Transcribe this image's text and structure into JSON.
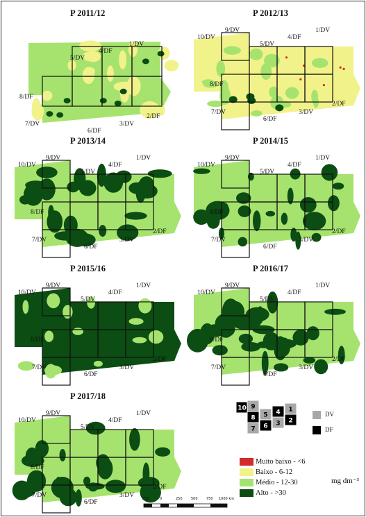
{
  "colors": {
    "muito_baixo": "#d22b2b",
    "baixo": "#f2f28a",
    "medio": "#a6e36e",
    "alto": "#0b4d12",
    "border": "#111111"
  },
  "panels": [
    {
      "title": "P 2011/12",
      "labels": [
        "1/DV",
        "4/DF",
        "5/DV",
        "8/DF",
        "7/DV",
        "6/DF",
        "3/DV",
        "2/DF"
      ],
      "base": "medio",
      "highlight": "baixo",
      "dense": 0.25
    },
    {
      "title": "P 2012/13",
      "labels": [
        "10/DV",
        "9/DV",
        "1/DV",
        "4/DF",
        "5/DV",
        "8/DF",
        "7/DV",
        "6/DF",
        "3/DV",
        "2/DF"
      ],
      "base": "baixo",
      "highlight": "medio",
      "dense": 0.2
    },
    {
      "title": "P 2013/14",
      "labels": [
        "10/DV",
        "9/DV",
        "1/DV",
        "4/DF",
        "5/DV",
        "8/DF",
        "7/DV",
        "6/DF",
        "3/DV",
        "2/DF"
      ],
      "base": "medio",
      "highlight": "alto",
      "dense": 0.45
    },
    {
      "title": "P 2014/15",
      "labels": [
        "10/DV",
        "9/DV",
        "1/DV",
        "4/DF",
        "5/DV",
        "8/DF",
        "7/DV",
        "6/DF",
        "3/DV",
        "2/DF"
      ],
      "base": "medio",
      "highlight": "alto",
      "dense": 0.35
    },
    {
      "title": "P 2015/16",
      "labels": [
        "10/DV",
        "9/DV",
        "1/DV",
        "4/DF",
        "5/DV",
        "8/DF",
        "7/DV",
        "6/DF",
        "3/DV",
        "2/DF"
      ],
      "base": "alto",
      "highlight": "medio",
      "dense": 0.05
    },
    {
      "title": "P 2016/17",
      "labels": [
        "10/DV",
        "9/DV",
        "1/DV",
        "4/DF",
        "5/DV",
        "8/DF",
        "7/DV",
        "6/DF",
        "3/DV",
        "2/DF"
      ],
      "base": "medio",
      "highlight": "alto",
      "dense": 0.6
    },
    {
      "title": "P 2017/18",
      "labels": [
        "10/DV",
        "9/DV",
        "1/DV",
        "4/DF",
        "5/DV",
        "8/DF",
        "7/DV",
        "6/DF",
        "3/DV",
        "2/DF"
      ],
      "base": "medio",
      "highlight": "alto",
      "dense": 0.4
    }
  ],
  "key_map": {
    "numbers": [
      "10",
      "9",
      "8",
      "5",
      "4",
      "1",
      "7",
      "6",
      "3",
      "2"
    ],
    "dv_label": "DV",
    "df_label": "DF"
  },
  "legend": {
    "items": [
      {
        "label": "Muito baixo - <6",
        "color": "muito_baixo"
      },
      {
        "label": "Baixo - 6-12",
        "color": "baixo"
      },
      {
        "label": "Médio - 12-30",
        "color": "medio"
      },
      {
        "label": "Alto - >30",
        "color": "alto"
      }
    ],
    "unit": "mg dm⁻³"
  },
  "scale": {
    "ticks": [
      "250",
      "0",
      "250",
      "500",
      "750",
      "1000 km"
    ]
  }
}
